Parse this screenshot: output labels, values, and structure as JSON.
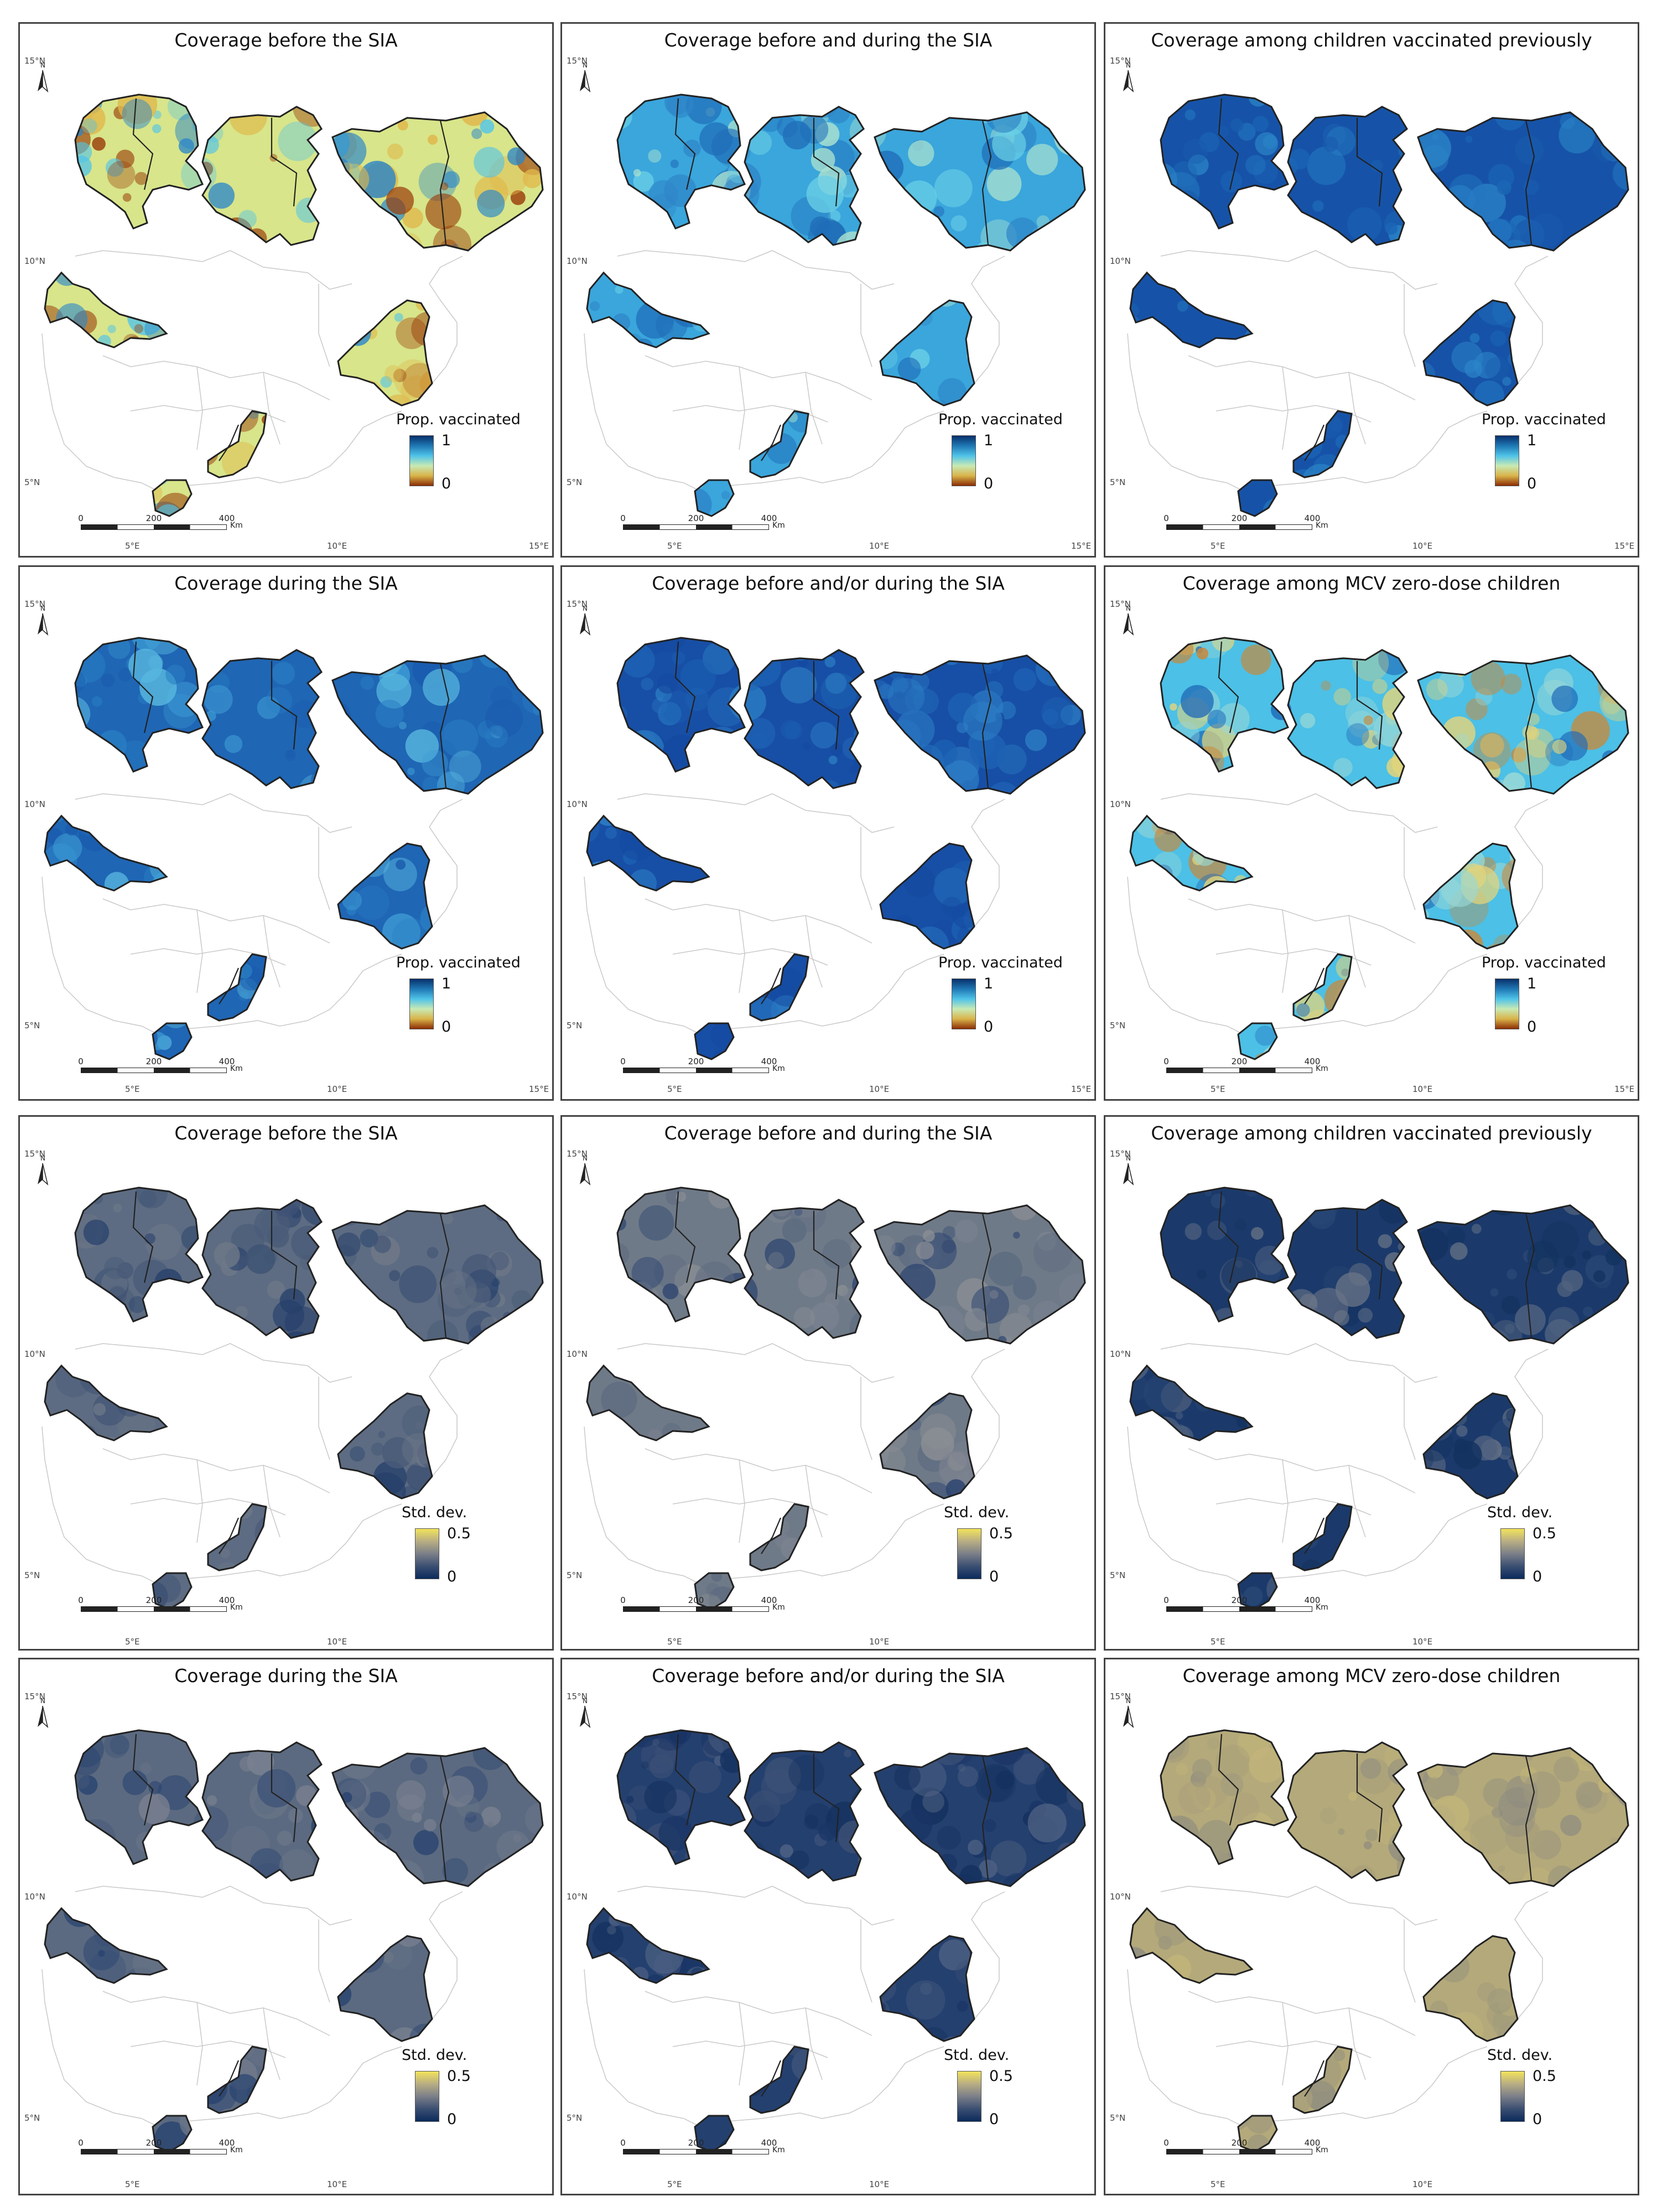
{
  "figure": {
    "latitude_labels": [
      "15°N",
      "10°N",
      "5°N"
    ],
    "longitude_labels": [
      "5°E",
      "10°E",
      "15°E"
    ],
    "north_label": "N",
    "scalebar": {
      "ticks": [
        "0",
        "200",
        "400"
      ],
      "unit": "Km"
    },
    "coverage_legend": {
      "title": "Prop. vaccinated",
      "max": "1",
      "min": "0",
      "colors": [
        "#08306b",
        "#1f78b4",
        "#4fc3e8",
        "#c7e9b4",
        "#d9b44a",
        "#8c2d04"
      ]
    },
    "sd_legend": {
      "title": "Std. dev.",
      "max": "0.5",
      "min": "0",
      "colors": [
        "#f2e35b",
        "#b8ad83",
        "#7b7f88",
        "#3b4f72",
        "#0b2a5c"
      ]
    },
    "panels": [
      {
        "title": "Coverage before the SIA",
        "legend": "coverage",
        "palette": [
          "#d8e58a",
          "#53c4e8",
          "#2a86c9",
          "#e0b84b",
          "#9a3b08"
        ]
      },
      {
        "title": "Coverage before and during the SIA",
        "legend": "coverage",
        "palette": [
          "#3aa6dc",
          "#2f86c8",
          "#6ad0e6",
          "#a9e1cf",
          "#1f6db8"
        ]
      },
      {
        "title": "Coverage among children vaccinated previously",
        "legend": "coverage",
        "palette": [
          "#1653a8",
          "#1c66b6",
          "#2275bf",
          "#1a5cae",
          "#2b85c8"
        ]
      },
      {
        "title": "Coverage during the SIA",
        "legend": "coverage",
        "palette": [
          "#1f66b5",
          "#2a7fc4",
          "#3e9cd4",
          "#57b6de",
          "#1a5aad"
        ]
      },
      {
        "title": "Coverage before and/or during the SIA",
        "legend": "coverage",
        "palette": [
          "#174fa6",
          "#1d62b3",
          "#2670bd",
          "#2e80c6",
          "#154aa1"
        ]
      },
      {
        "title": "Coverage among MCV zero-dose children",
        "legend": "coverage",
        "palette": [
          "#4cc0e6",
          "#e4d47a",
          "#1f6ab8",
          "#c9883a",
          "#9ad8d6"
        ]
      },
      {
        "title": "Coverage before the SIA",
        "legend": "sd",
        "palette": [
          "#5d6c82",
          "#4a5c79",
          "#6e7888",
          "#3e5274",
          "#26406b"
        ]
      },
      {
        "title": "Coverage before and during the SIA",
        "legend": "sd",
        "palette": [
          "#6f7a88",
          "#7c8390",
          "#5c6a80",
          "#8a8e94",
          "#2c4470"
        ]
      },
      {
        "title": "Coverage among children vaccinated previously",
        "legend": "sd",
        "palette": [
          "#1b3a6b",
          "#2a4876",
          "#4f6280",
          "#13325f",
          "#6a7486"
        ]
      },
      {
        "title": "Coverage during the SIA",
        "legend": "sd",
        "palette": [
          "#5b6a80",
          "#3f5477",
          "#7a8190",
          "#2a4470",
          "#6b7688"
        ]
      },
      {
        "title": "Coverage before and/or during the SIA",
        "legend": "sd",
        "palette": [
          "#24406f",
          "#1a3565",
          "#3b5076",
          "#4f6283",
          "#14305e"
        ]
      },
      {
        "title": "Coverage among MCV zero-dose children",
        "legend": "sd",
        "palette": [
          "#b4a97a",
          "#a89f7b",
          "#c2b57a",
          "#8e8c80",
          "#9d987d"
        ]
      }
    ]
  }
}
